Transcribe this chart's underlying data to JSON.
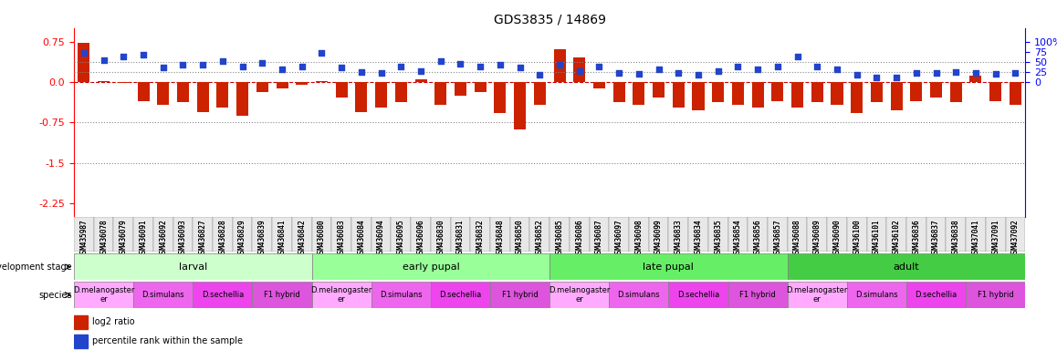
{
  "title": "GDS3835 / 14869",
  "samples": [
    "GSM435987",
    "GSM436078",
    "GSM436079",
    "GSM436091",
    "GSM436092",
    "GSM436093",
    "GSM436827",
    "GSM436828",
    "GSM436829",
    "GSM436839",
    "GSM436841",
    "GSM436842",
    "GSM436080",
    "GSM436083",
    "GSM436084",
    "GSM436094",
    "GSM436095",
    "GSM436096",
    "GSM436830",
    "GSM436831",
    "GSM436832",
    "GSM436848",
    "GSM436850",
    "GSM436852",
    "GSM436085",
    "GSM436086",
    "GSM436087",
    "GSM436097",
    "GSM436098",
    "GSM436099",
    "GSM436833",
    "GSM436834",
    "GSM436835",
    "GSM436854",
    "GSM436856",
    "GSM436857",
    "GSM436088",
    "GSM436089",
    "GSM436090",
    "GSM436100",
    "GSM436101",
    "GSM436102",
    "GSM436836",
    "GSM436837",
    "GSM436838",
    "GSM437041",
    "GSM437091",
    "GSM437092"
  ],
  "log2_ratio": [
    0.72,
    0.02,
    -0.02,
    -0.35,
    -0.42,
    -0.38,
    -0.55,
    -0.48,
    -0.62,
    -0.18,
    -0.12,
    -0.05,
    0.02,
    -0.28,
    -0.55,
    -0.48,
    -0.38,
    0.05,
    -0.42,
    -0.25,
    -0.18,
    -0.58,
    -0.88,
    -0.42,
    0.6,
    0.45,
    -0.12,
    -0.38,
    -0.42,
    -0.28,
    -0.48,
    -0.52,
    -0.38,
    -0.42,
    -0.48,
    -0.35,
    -0.48,
    -0.38,
    -0.42,
    -0.58,
    -0.38,
    -0.52,
    -0.35,
    -0.28,
    -0.38,
    0.12,
    -0.35,
    -0.42
  ],
  "percentile": [
    72,
    55,
    62,
    68,
    35,
    42,
    42,
    52,
    38,
    48,
    32,
    38,
    72,
    35,
    25,
    22,
    38,
    28,
    52,
    45,
    38,
    42,
    35,
    18,
    42,
    28,
    38,
    22,
    20,
    32,
    22,
    18,
    28,
    38,
    32,
    38,
    62,
    38,
    32,
    18,
    12,
    12,
    22,
    22,
    25,
    22,
    20,
    22
  ],
  "dev_stages": [
    {
      "name": "larval",
      "start": 0,
      "end": 12,
      "color": "#ccffcc"
    },
    {
      "name": "early pupal",
      "start": 12,
      "end": 24,
      "color": "#99ff99"
    },
    {
      "name": "late pupal",
      "start": 24,
      "end": 36,
      "color": "#66ff66"
    },
    {
      "name": "adult",
      "start": 36,
      "end": 48,
      "color": "#44ee44"
    }
  ],
  "species_blocks": [
    {
      "name": "D.melanogaster\ner",
      "start": 0,
      "end": 3,
      "color": "#ffaaff"
    },
    {
      "name": "D.simulans",
      "start": 3,
      "end": 6,
      "color": "#ff77ff"
    },
    {
      "name": "D.sechellia",
      "start": 6,
      "end": 9,
      "color": "#ff55ff"
    },
    {
      "name": "F1 hybrid",
      "start": 9,
      "end": 12,
      "color": "#ff77ff"
    },
    {
      "name": "D.melanogaster\ner",
      "start": 12,
      "end": 15,
      "color": "#ffaaff"
    },
    {
      "name": "D.simulans",
      "start": 15,
      "end": 18,
      "color": "#ff77ff"
    },
    {
      "name": "D.sechellia",
      "start": 18,
      "end": 21,
      "color": "#ff55ff"
    },
    {
      "name": "F1 hybrid",
      "start": 21,
      "end": 24,
      "color": "#ff77ff"
    },
    {
      "name": "D.melanogaster\ner",
      "start": 24,
      "end": 27,
      "color": "#ffaaff"
    },
    {
      "name": "D.simulans",
      "start": 27,
      "end": 30,
      "color": "#ff77ff"
    },
    {
      "name": "D.sechellia",
      "start": 30,
      "end": 33,
      "color": "#ff55ff"
    },
    {
      "name": "F1 hybrid",
      "start": 33,
      "end": 36,
      "color": "#ff77ff"
    },
    {
      "name": "D.melanogaster\ner",
      "start": 36,
      "end": 39,
      "color": "#ffaaff"
    },
    {
      "name": "D.simulans",
      "start": 39,
      "end": 42,
      "color": "#ff77ff"
    },
    {
      "name": "D.sechellia",
      "start": 42,
      "end": 45,
      "color": "#ff55ff"
    },
    {
      "name": "F1 hybrid",
      "start": 45,
      "end": 48,
      "color": "#ff77ff"
    }
  ],
  "ylim_left": [
    -2.5,
    1.0
  ],
  "yticks_left": [
    0.75,
    0.0,
    -0.75,
    -1.5,
    -2.25
  ],
  "ylim_right": [
    -333.3,
    133.3
  ],
  "yticks_right": [
    0,
    25,
    50,
    75,
    100
  ],
  "bar_color": "#cc2200",
  "dot_color": "#2244cc",
  "zero_line_color": "#cc0000",
  "grid_color": "#888888"
}
